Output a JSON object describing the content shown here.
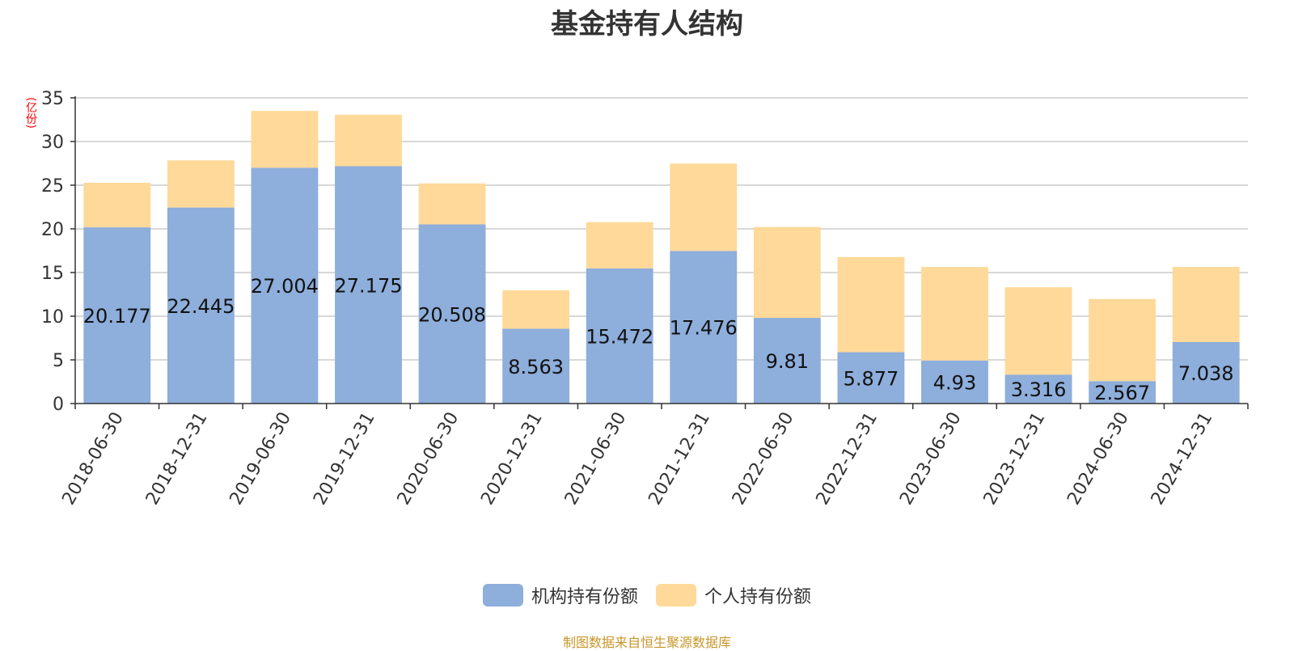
{
  "chart_data": {
    "type": "bar",
    "stacked": true,
    "title": "基金持有人结构",
    "unit_label": "(亿份)",
    "categories": [
      "2018-06-30",
      "2018-12-31",
      "2019-06-30",
      "2019-12-31",
      "2020-06-30",
      "2020-12-31",
      "2021-06-30",
      "2021-12-31",
      "2022-06-30",
      "2022-12-31",
      "2023-06-30",
      "2023-12-31",
      "2024-06-30",
      "2024-12-31"
    ],
    "series": [
      {
        "name": "机构持有份额",
        "color": "#8eaedb",
        "values": [
          20.177,
          22.445,
          27.004,
          27.175,
          20.508,
          8.563,
          15.472,
          17.476,
          9.81,
          5.877,
          4.93,
          3.316,
          2.567,
          7.038
        ],
        "labels": [
          "20.177",
          "22.445",
          "27.004",
          "27.175",
          "20.508",
          "8.563",
          "15.472",
          "17.476",
          "9.81",
          "5.877",
          "4.93",
          "3.316",
          "2.567",
          "7.038"
        ]
      },
      {
        "name": "个人持有份额",
        "color": "#fed999",
        "values": [
          5.1,
          5.4,
          6.5,
          5.9,
          4.7,
          4.4,
          5.3,
          10.0,
          10.4,
          10.9,
          10.7,
          10.0,
          9.4,
          8.6
        ]
      }
    ],
    "ylim": [
      0,
      35
    ],
    "yticks": [
      0,
      5,
      10,
      15,
      20,
      25,
      30,
      35
    ],
    "grid": true,
    "legend_position": "bottom"
  },
  "source_note": "制图数据来自恒生聚源数据库"
}
